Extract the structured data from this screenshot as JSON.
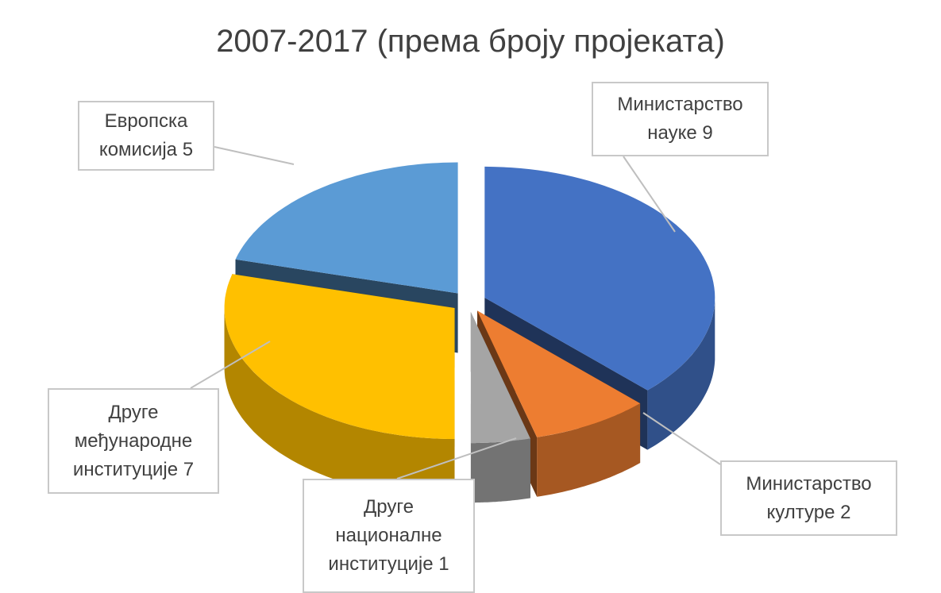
{
  "chart_data": {
    "type": "pie",
    "title": "2007-2017 (према броју пројеката)",
    "categories": [
      "Министарство науке",
      "Министарство културе",
      "Друге националне институције",
      "Друге међународне институције",
      "Европска комисија"
    ],
    "values": [
      9,
      2,
      1,
      7,
      5
    ],
    "colors": [
      "#4472c4",
      "#ed7d31",
      "#a5a5a5",
      "#ffc000",
      "#5b9bd5"
    ]
  }
}
